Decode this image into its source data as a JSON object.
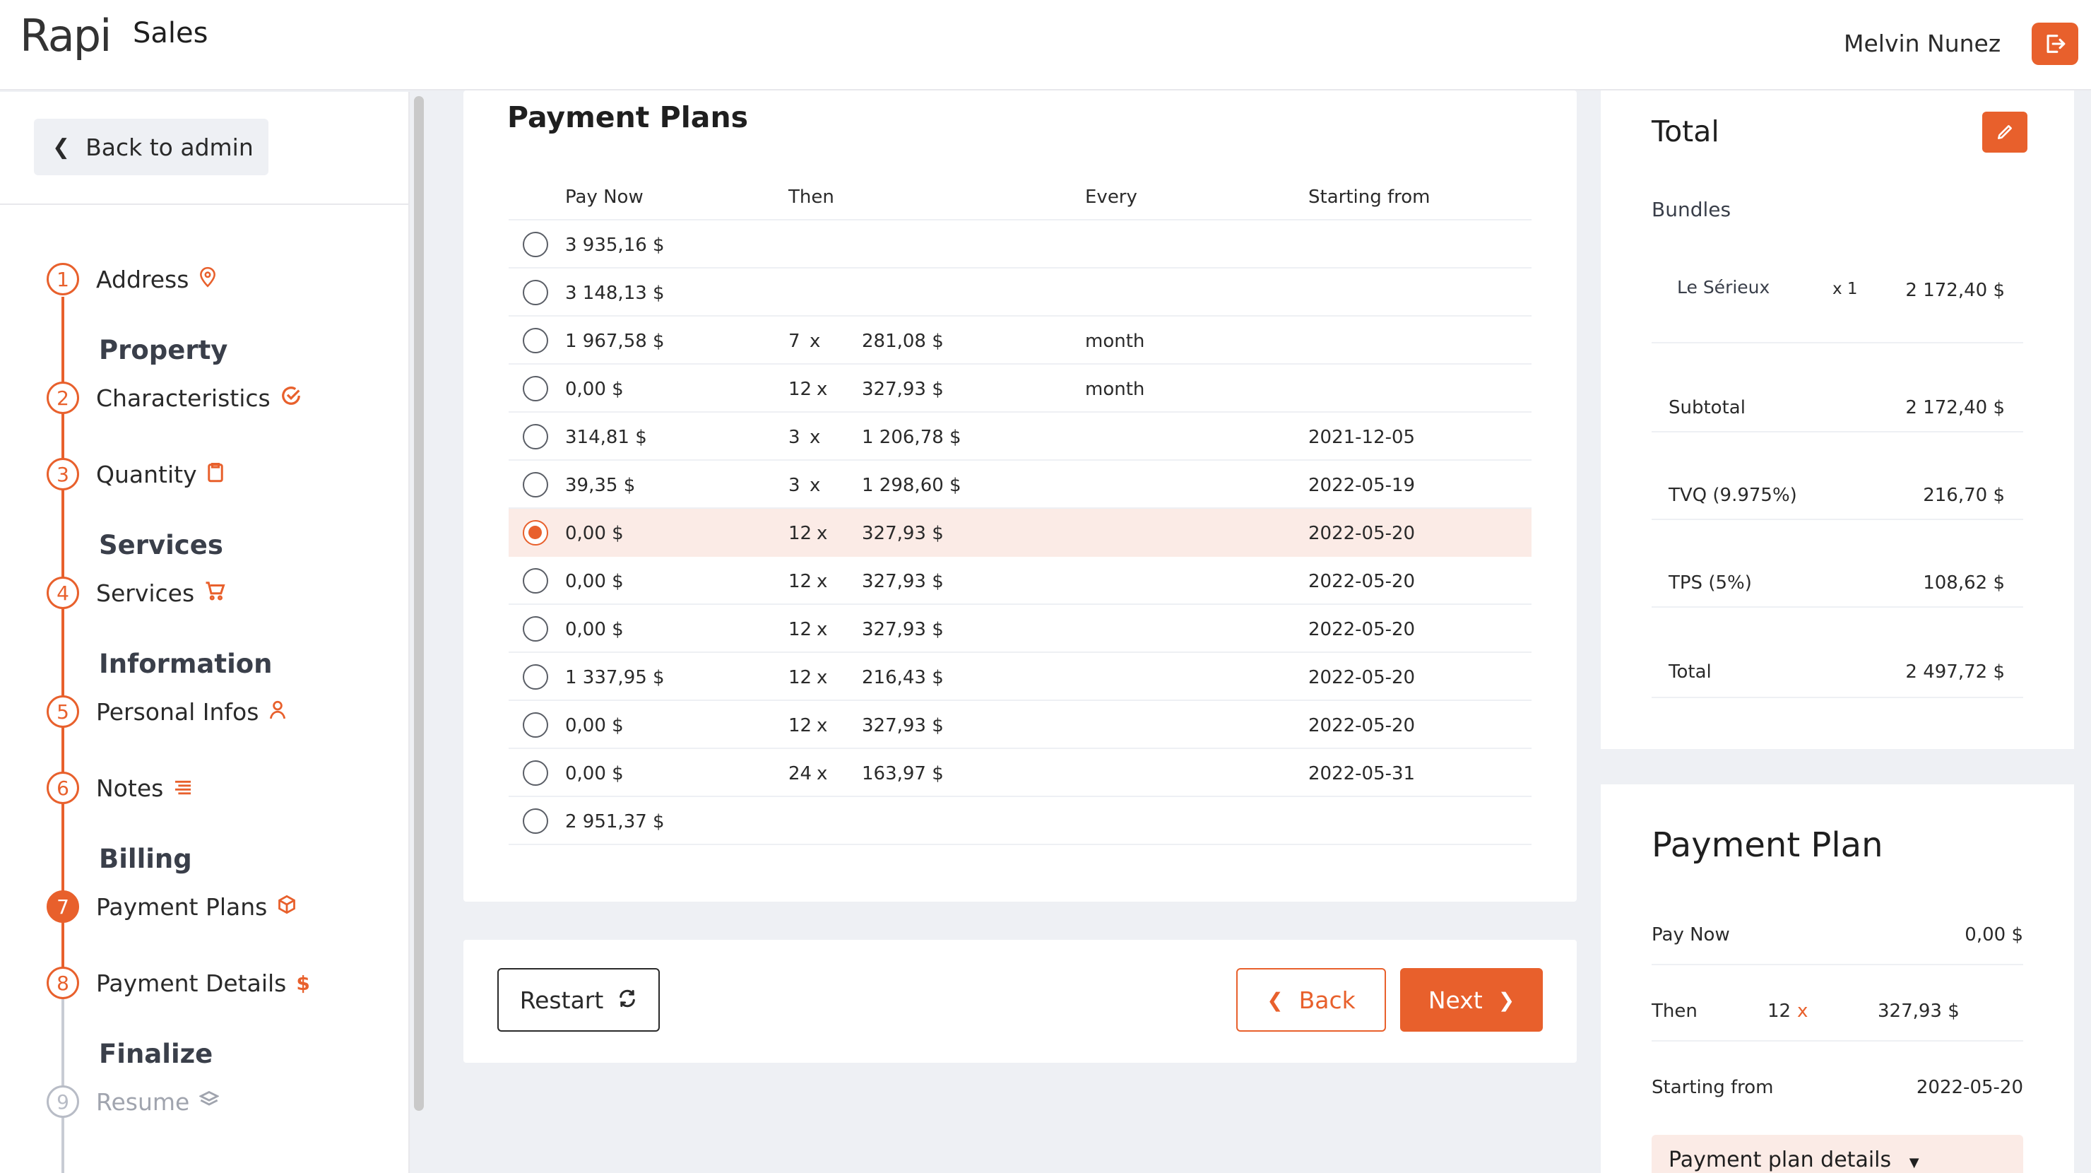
{
  "header": {
    "logo": "Rapi",
    "app_title": "Sales",
    "user_name": "Melvin Nunez",
    "logout_icon": "logout-icon"
  },
  "sidebar": {
    "back_label": "Back to admin",
    "steps": [
      {
        "number": "1",
        "label": "Address",
        "icon": "map-pin-icon",
        "group": ""
      },
      {
        "number": "2",
        "label": "Characteristics",
        "icon": "check-circle-icon",
        "group": "Property"
      },
      {
        "number": "3",
        "label": "Quantity",
        "icon": "clipboard-icon",
        "group": ""
      },
      {
        "number": "4",
        "label": "Services",
        "icon": "cart-icon",
        "group": "Services"
      },
      {
        "number": "5",
        "label": "Personal Infos",
        "icon": "user-icon",
        "group": "Information"
      },
      {
        "number": "6",
        "label": "Notes",
        "icon": "notes-icon",
        "group": ""
      },
      {
        "number": "7",
        "label": "Payment Plans",
        "icon": "box-icon",
        "group": "Billing"
      },
      {
        "number": "8",
        "label": "Payment Details",
        "icon": "dollar-icon",
        "group": ""
      },
      {
        "number": "9",
        "label": "Resume",
        "icon": "layers-icon",
        "group": "Finalize"
      }
    ]
  },
  "plans": {
    "title": "Payment Plans",
    "columns": [
      "Pay Now",
      "Then",
      "Every",
      "Starting from"
    ],
    "rows": [
      {
        "pay_now": "3 935,16 $",
        "count": "",
        "x": "",
        "amount": "",
        "every": "",
        "start": ""
      },
      {
        "pay_now": "3 148,13 $",
        "count": "",
        "x": "",
        "amount": "",
        "every": "",
        "start": ""
      },
      {
        "pay_now": "1 967,58 $",
        "count": "7",
        "x": "x",
        "amount": "281,08 $",
        "every": "month",
        "start": ""
      },
      {
        "pay_now": "0,00 $",
        "count": "12",
        "x": "x",
        "amount": "327,93 $",
        "every": "month",
        "start": ""
      },
      {
        "pay_now": "314,81 $",
        "count": "3",
        "x": "x",
        "amount": "1 206,78 $",
        "every": "",
        "start": "2021-12-05"
      },
      {
        "pay_now": "39,35 $",
        "count": "3",
        "x": "x",
        "amount": "1 298,60 $",
        "every": "",
        "start": "2022-05-19"
      },
      {
        "pay_now": "0,00 $",
        "count": "12",
        "x": "x",
        "amount": "327,93 $",
        "every": "",
        "start": "2022-05-20"
      },
      {
        "pay_now": "0,00 $",
        "count": "12",
        "x": "x",
        "amount": "327,93 $",
        "every": "",
        "start": "2022-05-20"
      },
      {
        "pay_now": "0,00 $",
        "count": "12",
        "x": "x",
        "amount": "327,93 $",
        "every": "",
        "start": "2022-05-20"
      },
      {
        "pay_now": "1 337,95 $",
        "count": "12",
        "x": "x",
        "amount": "216,43 $",
        "every": "",
        "start": "2022-05-20"
      },
      {
        "pay_now": "0,00 $",
        "count": "12",
        "x": "x",
        "amount": "327,93 $",
        "every": "",
        "start": "2022-05-20"
      },
      {
        "pay_now": "0,00 $",
        "count": "24",
        "x": "x",
        "amount": "163,97 $",
        "every": "",
        "start": "2022-05-31"
      },
      {
        "pay_now": "2 951,37 $",
        "count": "",
        "x": "",
        "amount": "",
        "every": "",
        "start": ""
      }
    ],
    "selected_index": 6
  },
  "actions": {
    "restart_label": "Restart",
    "back_label": "Back",
    "next_label": "Next"
  },
  "total": {
    "title": "Total",
    "bundles_label": "Bundles",
    "bundle_name": "Le Sérieux",
    "bundle_qty": "x 1",
    "bundle_price": "2 172,40 $",
    "subtotal_label": "Subtotal",
    "subtotal_value": "2 172,40 $",
    "tvq_label": "TVQ (9.975%)",
    "tvq_value": "216,70 $",
    "tps_label": "TPS (5%)",
    "tps_value": "108,62 $",
    "total_label": "Total",
    "total_value": "2 497,72 $"
  },
  "payment_plan": {
    "title": "Payment Plan",
    "pay_now_label": "Pay Now",
    "pay_now_value": "0,00 $",
    "then_label": "Then",
    "then_count": "12",
    "then_x": "x",
    "then_amount": "327,93 $",
    "starting_label": "Starting from",
    "starting_value": "2022-05-20",
    "details_label": "Payment plan details"
  },
  "colors": {
    "accent": "#e8602c",
    "selected_row": "#fbebe6"
  }
}
